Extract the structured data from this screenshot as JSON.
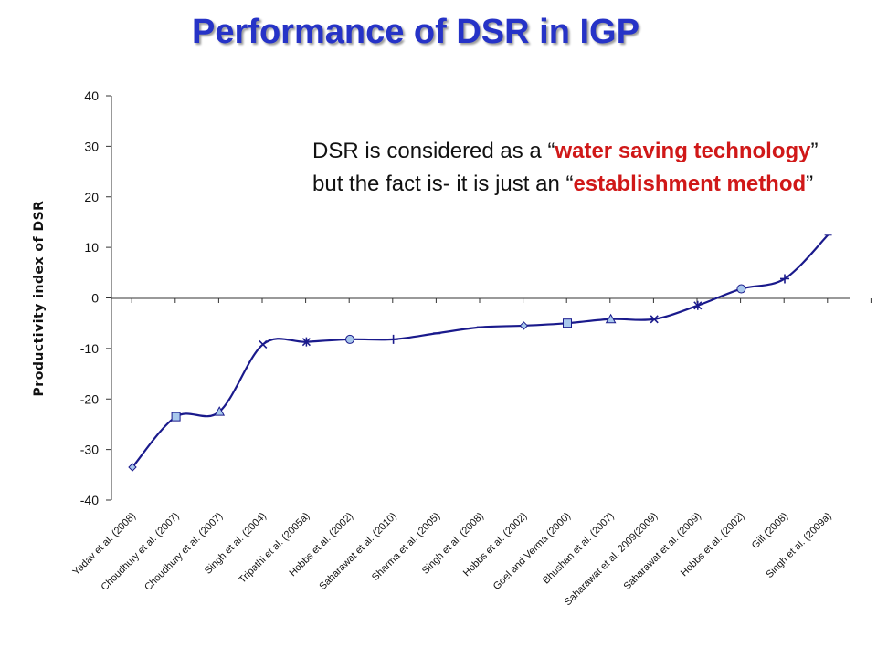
{
  "slide": {
    "title": "Performance of DSR in IGP",
    "callout": {
      "p1": "DSR is considered as a “",
      "h1": "water saving technology",
      "p2": "” but the fact is- it is just an “",
      "h2": "establishment method",
      "p3": "”"
    }
  },
  "chart_data": {
    "type": "line",
    "title": "",
    "xlabel": "",
    "ylabel": "Productivity index of DSR",
    "ylim": [
      -40,
      40
    ],
    "yticks": [
      40,
      30,
      20,
      10,
      0,
      -10,
      -20,
      -30,
      -40
    ],
    "grid": false,
    "categories": [
      "Yadav et al. (2008)",
      "Choudhury et al. (2007)",
      "Choudhury et al. (2007)",
      "Singh et al. (2004)",
      "Tripathi et al. (2005a)",
      "Hobbs et al. (2002)",
      "Saharawat et al. (2010)",
      "Sharma et al. (2005)",
      "Singh et al. (2008)",
      "Hobbs et al. (2002)",
      "Goel and Verma (2000)",
      "Bhushan et al. (2007)",
      "Saharawat et al. 2009(2009)",
      "Saharawat et al. (2009)",
      "Hobbs et al. (2002)",
      "Gill (2008)",
      "Singh et al. (2009a)"
    ],
    "series": [
      {
        "values": [
          -33.5,
          -23.5,
          -22.5,
          -9.2,
          -8.7,
          -8.2,
          -8.2,
          -7,
          -5.8,
          -5.5,
          -5,
          -4.2,
          -4.2,
          -1.5,
          1.8,
          3.8,
          12.5
        ],
        "markers": [
          "diamond",
          "square",
          "triangle",
          "x",
          "star",
          "circle",
          "plus",
          "dash",
          "dash",
          "diamond",
          "square",
          "triangle",
          "x",
          "star",
          "circle",
          "plus",
          "dash"
        ],
        "color": "#1a1a8c",
        "marker_fill": "#a8c8ec"
      }
    ]
  }
}
